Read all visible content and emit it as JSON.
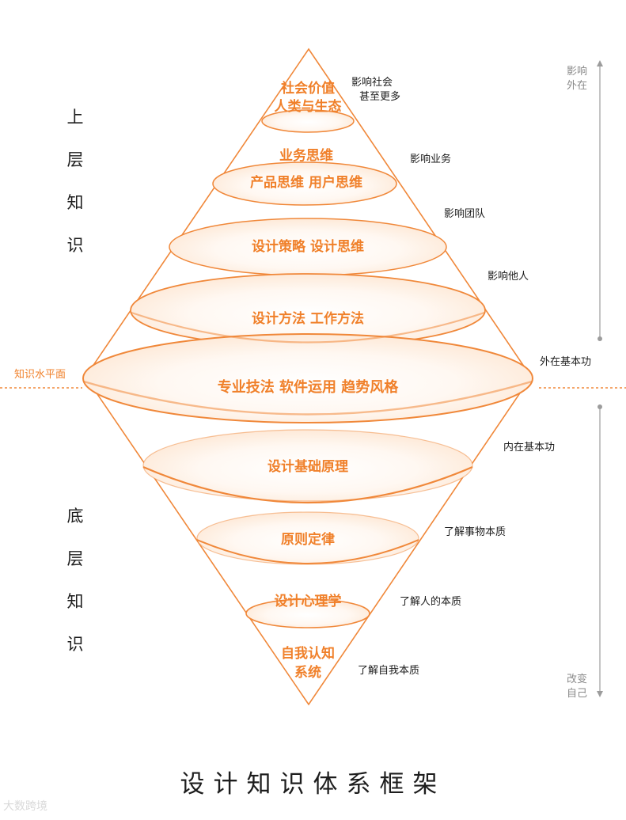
{
  "diagram": {
    "title": "设计知识体系框架",
    "upper_label": [
      "上",
      "层",
      "知",
      "识"
    ],
    "lower_label": [
      "底",
      "层",
      "知",
      "识"
    ],
    "knowledge_plane_label": "知识水平面",
    "layers": [
      {
        "lines": [
          "社会价值",
          "人类与生态"
        ],
        "impact": [
          "影响社会",
          "甚至更多"
        ]
      },
      {
        "lines": [
          "业务思维",
          "产品思维  用户思维"
        ],
        "impact": [
          "影响业务"
        ]
      },
      {
        "lines": [
          "设计策略  设计思维"
        ],
        "impact": [
          "影响团队"
        ]
      },
      {
        "lines": [
          "设计方法  工作方法"
        ],
        "impact": [
          "影响他人"
        ]
      },
      {
        "lines": [
          "专业技法  软件运用  趋势风格"
        ],
        "impact": [
          "外在基本功"
        ]
      },
      {
        "lines": [
          "设计基础原理"
        ],
        "impact": [
          "内在基本功"
        ]
      },
      {
        "lines": [
          "原则定律"
        ],
        "impact": [
          "了解事物本质"
        ]
      },
      {
        "lines": [
          "设计心理学"
        ],
        "impact": [
          "了解人的本质"
        ]
      },
      {
        "lines": [
          "自我认知",
          "系统"
        ],
        "impact": [
          "了解自我本质"
        ]
      }
    ],
    "top_axis_label": [
      "影响",
      "外在"
    ],
    "bottom_axis_label": [
      "改变",
      "自己"
    ],
    "colors": {
      "accent": "#f0883a",
      "text_orange": "#f0802a",
      "ellipse_fill": "#fdeede",
      "axis_gray": "#9c9c9c",
      "label_gray": "#8a8a8a",
      "dark_text": "#1d1d1d"
    }
  },
  "watermark": "大数跨境"
}
